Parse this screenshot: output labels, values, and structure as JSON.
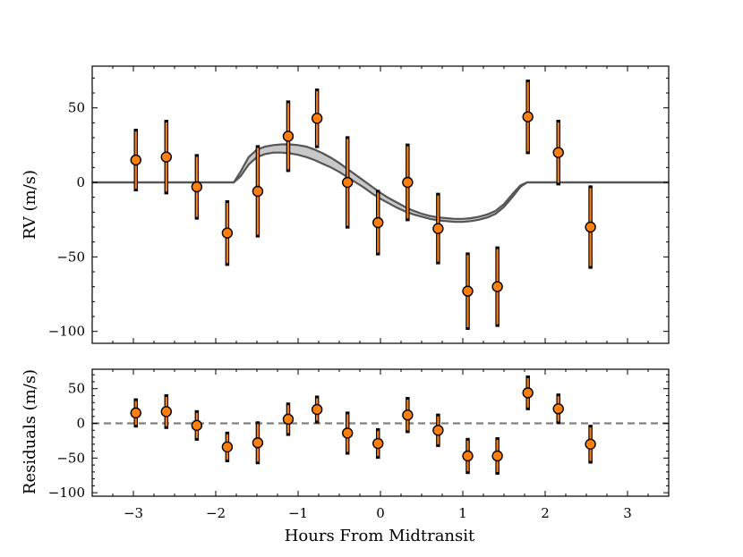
{
  "chart_data": [
    {
      "type": "scatter",
      "panel": "rv",
      "xlabel": "",
      "ylabel": "RV (m/s)",
      "xlim": [
        -3.5,
        3.5
      ],
      "ylim": [
        -108,
        78
      ],
      "xticks": [
        -3,
        -2,
        -1,
        0,
        1,
        2,
        3
      ],
      "yticks": [
        -100,
        -50,
        0,
        50
      ],
      "ytick_labels": [
        "−100",
        "−50",
        "0",
        "50"
      ],
      "grid": false,
      "colors": {
        "point": "#ff7f0e",
        "errorbar": "#ff7f0e",
        "errorcap": "#000000",
        "model_fill": "#c8c8c8",
        "model_line": "#555555"
      },
      "series": [
        {
          "x": [
            -2.97,
            -2.6,
            -2.23,
            -1.86,
            -1.49,
            -1.12,
            -0.77,
            -0.4,
            -0.03,
            0.33,
            0.7,
            1.06,
            1.42,
            1.79,
            2.16,
            2.55
          ],
          "y": [
            15,
            17,
            -3,
            -34,
            -6,
            31,
            43,
            0,
            -27,
            0,
            -31,
            -73,
            -70,
            44,
            20,
            -30
          ],
          "yerr": [
            21,
            25,
            22,
            22,
            31,
            24,
            20,
            31,
            22,
            26,
            24,
            26,
            27,
            25,
            22,
            28
          ]
        }
      ],
      "model_band": {
        "x": [
          -3.5,
          -1.78,
          -1.7,
          -1.6,
          -1.5,
          -1.4,
          -1.3,
          -1.2,
          -1.1,
          -1.0,
          -0.9,
          -0.8,
          -0.7,
          -0.6,
          -0.5,
          -0.4,
          -0.3,
          -0.2,
          -0.1,
          0.0,
          0.1,
          0.2,
          0.3,
          0.4,
          0.5,
          0.6,
          0.7,
          0.8,
          0.9,
          1.0,
          1.1,
          1.2,
          1.3,
          1.4,
          1.5,
          1.6,
          1.7,
          1.78,
          3.5
        ],
        "upper": [
          0,
          0,
          7,
          17,
          22,
          24,
          25,
          25.5,
          25.5,
          25,
          24,
          22,
          19.5,
          16.5,
          13,
          9,
          5,
          1,
          -3,
          -7,
          -10.5,
          -13.5,
          -16.5,
          -19,
          -21,
          -22.5,
          -23.5,
          -24,
          -24.5,
          -24.5,
          -24,
          -23,
          -21.5,
          -19,
          -14.5,
          -8,
          -2,
          0,
          0
        ],
        "lower": [
          0,
          0,
          4,
          12,
          17,
          19,
          20,
          20,
          19.5,
          18.5,
          17,
          15,
          12.5,
          10,
          7,
          3.5,
          0,
          -3.5,
          -7.5,
          -11,
          -14,
          -17,
          -19.5,
          -21.5,
          -23,
          -24.5,
          -25.5,
          -26,
          -26.5,
          -26.5,
          -26,
          -25,
          -23.5,
          -21,
          -16.5,
          -10,
          -3,
          0,
          0
        ]
      }
    },
    {
      "type": "scatter",
      "panel": "residuals",
      "xlabel": "Hours From Midtransit",
      "ylabel": "Residuals (m/s)",
      "xlim": [
        -3.5,
        3.5
      ],
      "ylim": [
        -105,
        78
      ],
      "xticks": [
        -3,
        -2,
        -1,
        0,
        1,
        2,
        3
      ],
      "xtick_labels": [
        "−3",
        "−2",
        "−1",
        "0",
        "1",
        "2",
        "3"
      ],
      "yticks": [
        -100,
        -50,
        0,
        50
      ],
      "ytick_labels": [
        "−100",
        "−50",
        "0",
        "50"
      ],
      "grid": false,
      "reference_line": {
        "y": 0,
        "style": "dashed",
        "color": "#808080"
      },
      "series": [
        {
          "x": [
            -2.97,
            -2.6,
            -2.23,
            -1.86,
            -1.49,
            -1.12,
            -0.77,
            -0.4,
            -0.03,
            0.33,
            0.7,
            1.06,
            1.42,
            1.79,
            2.16,
            2.55
          ],
          "y": [
            15,
            17,
            -3,
            -34,
            -28,
            6,
            20,
            -14,
            -29,
            12,
            -10,
            -47,
            -47,
            44,
            21,
            -30
          ],
          "yerr": [
            21,
            25,
            22,
            22,
            31,
            24,
            20,
            31,
            22,
            26,
            24,
            26,
            27,
            25,
            22,
            28
          ]
        }
      ]
    }
  ]
}
